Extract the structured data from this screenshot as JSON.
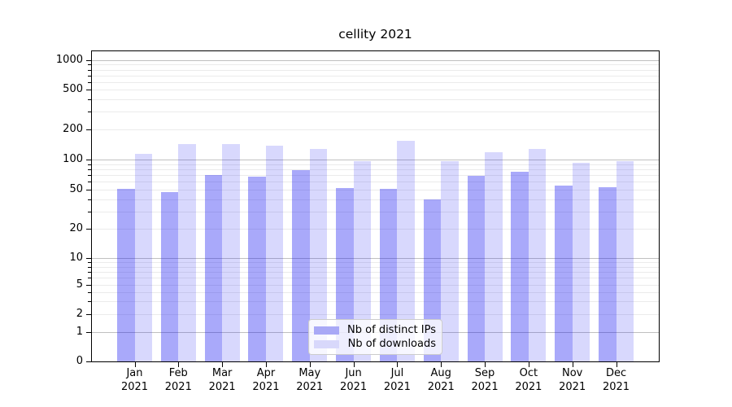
{
  "chart_data": {
    "type": "bar",
    "title": "cellity 2021",
    "year_label": "2021",
    "categories": [
      "Jan",
      "Feb",
      "Mar",
      "Apr",
      "May",
      "Jun",
      "Jul",
      "Aug",
      "Sep",
      "Oct",
      "Nov",
      "Dec"
    ],
    "series": [
      {
        "name": "Nb of distinct IPs",
        "color": "rgba(10,10,240,0.35)",
        "swatch_color": "#a9a9f6",
        "values": [
          51,
          47,
          70,
          67,
          78,
          52,
          51,
          40,
          69,
          75,
          55,
          53
        ]
      },
      {
        "name": "Nb of downloads",
        "color": "rgba(10,10,240,0.16)",
        "swatch_color": "#d8d8fb",
        "values": [
          115,
          144,
          142,
          138,
          127,
          97,
          155,
          97,
          118,
          127,
          92,
          96
        ]
      }
    ],
    "yscale": "symlog",
    "yticks": [
      0,
      1,
      2,
      5,
      10,
      20,
      50,
      100,
      200,
      500,
      1000
    ],
    "ylim": [
      0,
      1400
    ],
    "xlabel": "",
    "ylabel": "",
    "grid": true,
    "legend_position": "lower center",
    "colors": {
      "grid_major": "#c0c0c0",
      "grid_minor": "#ebebeb",
      "axis": "#000000",
      "text": "#000000",
      "background": "#ffffff"
    }
  }
}
